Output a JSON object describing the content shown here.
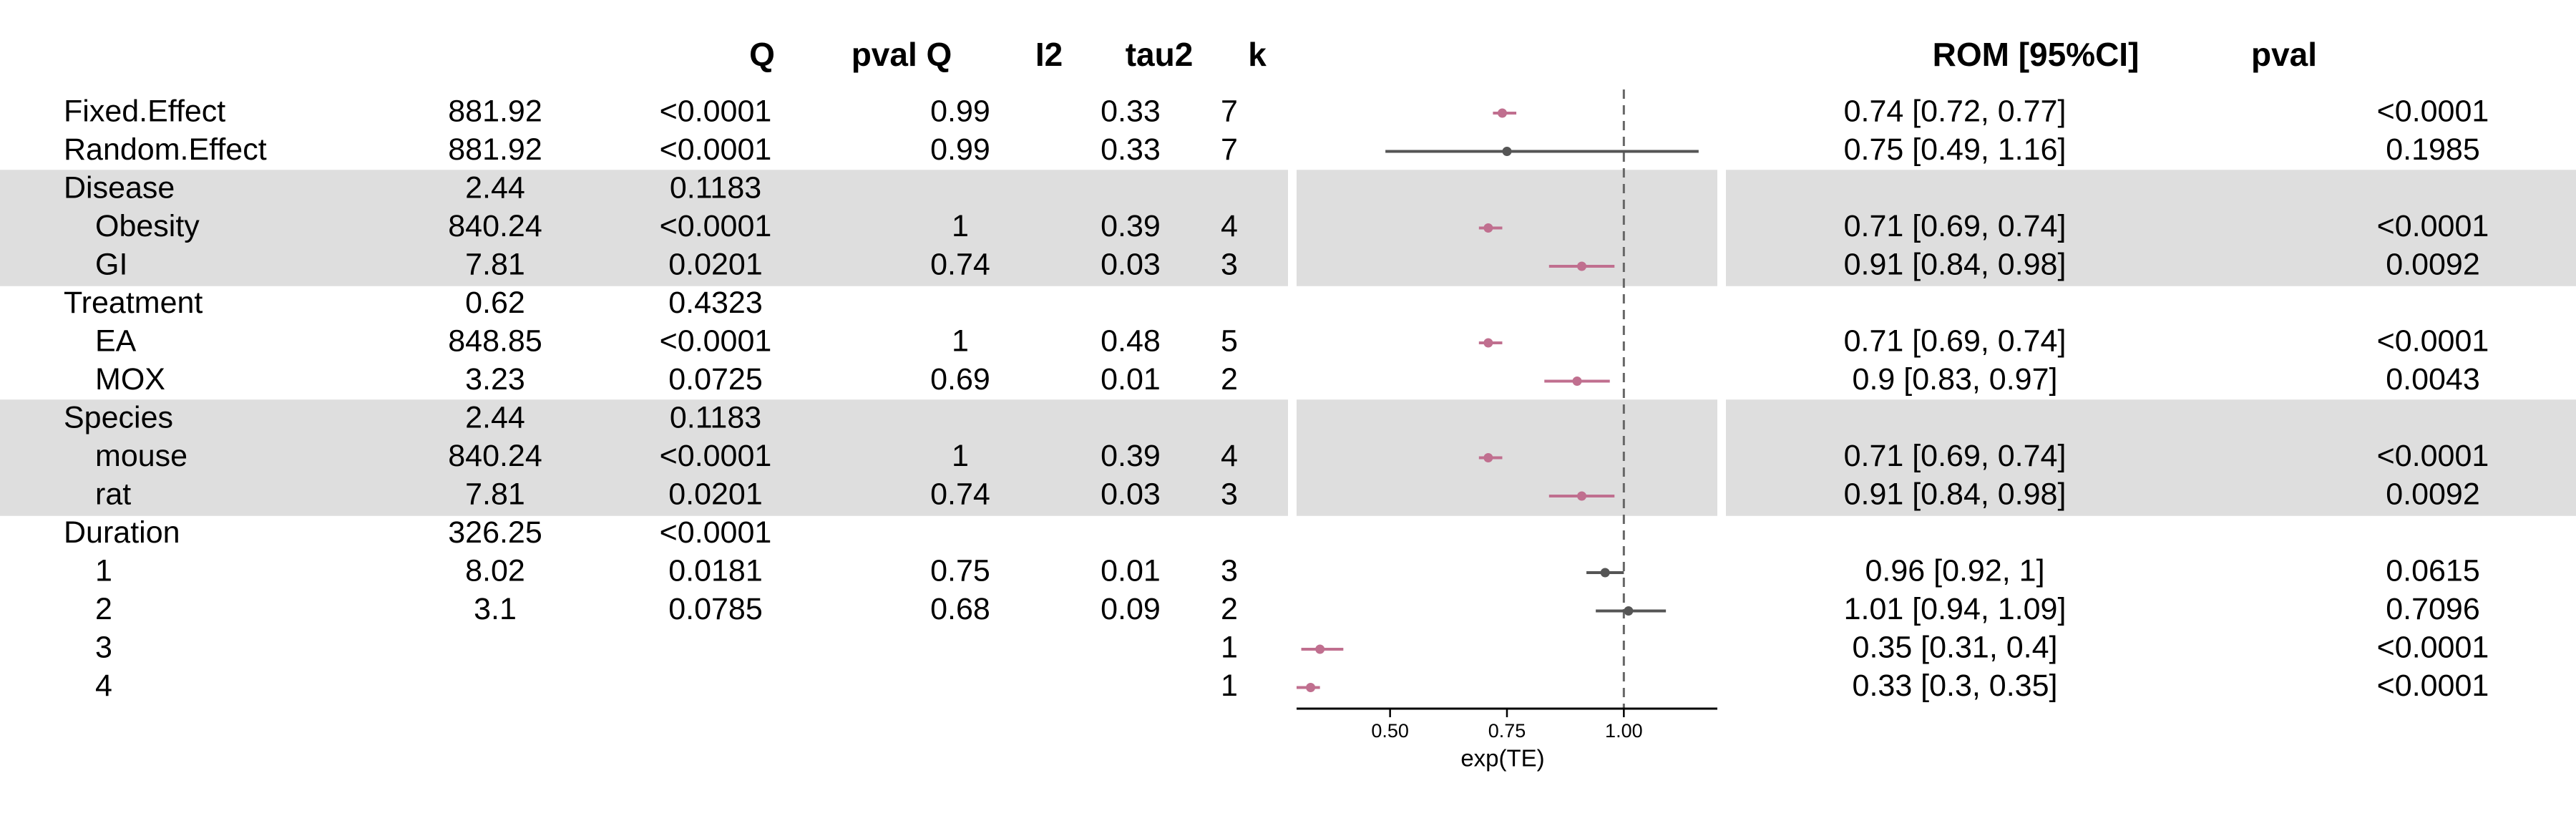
{
  "chart_data": {
    "type": "forest",
    "headers": {
      "Q": "Q",
      "pvalQ": "pval Q",
      "I2": "I2",
      "tau2": "tau2",
      "k": "k",
      "rom": "ROM [95%CI]",
      "pval": "pval"
    },
    "xlabel": "exp(TE)",
    "xlim": [
      0.3,
      1.2
    ],
    "ref_line": 1.0,
    "xticks": [
      {
        "value": 0.5,
        "label": "0.50"
      },
      {
        "value": 0.75,
        "label": "0.75"
      },
      {
        "value": 1.0,
        "label": "1.00"
      }
    ],
    "colors": {
      "significant": "#c06f8f",
      "nonsignificant": "#555555",
      "band": "#dedede"
    },
    "rows": [
      {
        "label": "Fixed.Effect",
        "indent": false,
        "band": false,
        "Q": "881.92",
        "pvalQ": "<0.0001",
        "I2": "0.99",
        "tau2": "0.33",
        "k": "7",
        "est": 0.74,
        "lo": 0.72,
        "hi": 0.77,
        "ci_text": "0.74 [0.72, 0.77]",
        "pval": "<0.0001",
        "sig": true
      },
      {
        "label": "Random.Effect",
        "indent": false,
        "band": false,
        "Q": "881.92",
        "pvalQ": "<0.0001",
        "I2": "0.99",
        "tau2": "0.33",
        "k": "7",
        "est": 0.75,
        "lo": 0.49,
        "hi": 1.16,
        "ci_text": "0.75 [0.49, 1.16]",
        "pval": "0.1985",
        "sig": false
      },
      {
        "label": "Disease",
        "indent": false,
        "band": true,
        "Q": "2.44",
        "pvalQ": "0.1183"
      },
      {
        "label": "Obesity",
        "indent": true,
        "band": true,
        "Q": "840.24",
        "pvalQ": "<0.0001",
        "I2": "1",
        "tau2": "0.39",
        "k": "4",
        "est": 0.71,
        "lo": 0.69,
        "hi": 0.74,
        "ci_text": "0.71 [0.69, 0.74]",
        "pval": "<0.0001",
        "sig": true
      },
      {
        "label": "GI",
        "indent": true,
        "band": true,
        "Q": "7.81",
        "pvalQ": "0.0201",
        "I2": "0.74",
        "tau2": "0.03",
        "k": "3",
        "est": 0.91,
        "lo": 0.84,
        "hi": 0.98,
        "ci_text": "0.91 [0.84, 0.98]",
        "pval": "0.0092",
        "sig": true
      },
      {
        "label": "Treatment",
        "indent": false,
        "band": false,
        "Q": "0.62",
        "pvalQ": "0.4323"
      },
      {
        "label": "EA",
        "indent": true,
        "band": false,
        "Q": "848.85",
        "pvalQ": "<0.0001",
        "I2": "1",
        "tau2": "0.48",
        "k": "5",
        "est": 0.71,
        "lo": 0.69,
        "hi": 0.74,
        "ci_text": "0.71 [0.69, 0.74]",
        "pval": "<0.0001",
        "sig": true
      },
      {
        "label": "MOX",
        "indent": true,
        "band": false,
        "Q": "3.23",
        "pvalQ": "0.0725",
        "I2": "0.69",
        "tau2": "0.01",
        "k": "2",
        "est": 0.9,
        "lo": 0.83,
        "hi": 0.97,
        "ci_text": "0.9 [0.83, 0.97]",
        "pval": "0.0043",
        "sig": true
      },
      {
        "label": "Species",
        "indent": false,
        "band": true,
        "Q": "2.44",
        "pvalQ": "0.1183"
      },
      {
        "label": "mouse",
        "indent": true,
        "band": true,
        "Q": "840.24",
        "pvalQ": "<0.0001",
        "I2": "1",
        "tau2": "0.39",
        "k": "4",
        "est": 0.71,
        "lo": 0.69,
        "hi": 0.74,
        "ci_text": "0.71 [0.69, 0.74]",
        "pval": "<0.0001",
        "sig": true
      },
      {
        "label": "rat",
        "indent": true,
        "band": true,
        "Q": "7.81",
        "pvalQ": "0.0201",
        "I2": "0.74",
        "tau2": "0.03",
        "k": "3",
        "est": 0.91,
        "lo": 0.84,
        "hi": 0.98,
        "ci_text": "0.91 [0.84, 0.98]",
        "pval": "0.0092",
        "sig": true
      },
      {
        "label": "Duration",
        "indent": false,
        "band": false,
        "Q": "326.25",
        "pvalQ": "<0.0001"
      },
      {
        "label": "1",
        "indent": true,
        "band": false,
        "Q": "8.02",
        "pvalQ": "0.0181",
        "I2": "0.75",
        "tau2": "0.01",
        "k": "3",
        "est": 0.96,
        "lo": 0.92,
        "hi": 1.0,
        "ci_text": "0.96 [0.92, 1]",
        "pval": "0.0615",
        "sig": false
      },
      {
        "label": "2",
        "indent": true,
        "band": false,
        "Q": "3.1",
        "pvalQ": "0.0785",
        "I2": "0.68",
        "tau2": "0.09",
        "k": "2",
        "est": 1.01,
        "lo": 0.94,
        "hi": 1.09,
        "ci_text": "1.01 [0.94, 1.09]",
        "pval": "0.7096",
        "sig": false
      },
      {
        "label": "3",
        "indent": true,
        "band": false,
        "k": "1",
        "est": 0.35,
        "lo": 0.31,
        "hi": 0.4,
        "ci_text": "0.35 [0.31, 0.4]",
        "pval": "<0.0001",
        "sig": true
      },
      {
        "label": "4",
        "indent": true,
        "band": false,
        "k": "1",
        "est": 0.33,
        "lo": 0.3,
        "hi": 0.35,
        "ci_text": "0.33 [0.3, 0.35]",
        "pval": "<0.0001",
        "sig": true
      }
    ]
  }
}
